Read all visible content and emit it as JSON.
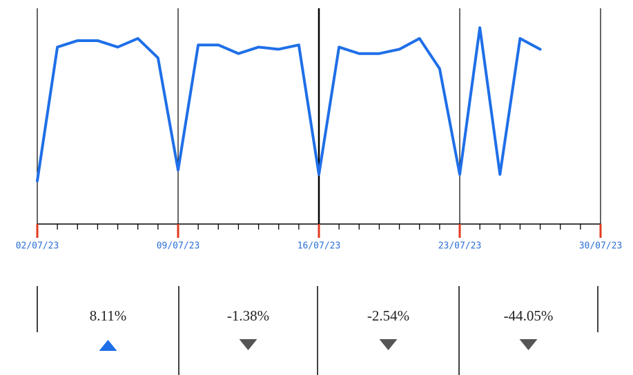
{
  "chart_data": {
    "type": "line",
    "x": [
      "02/07/23",
      "03/07/23",
      "04/07/23",
      "05/07/23",
      "06/07/23",
      "07/07/23",
      "08/07/23",
      "09/07/23",
      "10/07/23",
      "11/07/23",
      "12/07/23",
      "13/07/23",
      "14/07/23",
      "15/07/23",
      "16/07/23",
      "17/07/23",
      "18/07/23",
      "19/07/23",
      "20/07/23",
      "21/07/23",
      "22/07/23",
      "23/07/23",
      "24/07/23",
      "25/07/23",
      "26/07/23",
      "27/07/23"
    ],
    "values": [
      20,
      82,
      85,
      85,
      82,
      86,
      77,
      25,
      83,
      83,
      79,
      82,
      81,
      83,
      23,
      82,
      79,
      79,
      81,
      86,
      72,
      23,
      91,
      23,
      86,
      81
    ],
    "color": "#1f6fe8",
    "ylim": [
      0,
      100
    ],
    "xlim": [
      "02/07/23",
      "30/07/23"
    ],
    "xticks": [
      "02/07/23",
      "09/07/23",
      "16/07/23",
      "23/07/23",
      "30/07/23"
    ]
  },
  "weekly_change": [
    {
      "label": "8.11%",
      "trend": "up"
    },
    {
      "label": "-1.38%",
      "trend": "down"
    },
    {
      "label": "-2.54%",
      "trend": "down"
    },
    {
      "label": "-44.05%",
      "trend": "down"
    }
  ],
  "trend_colors": {
    "up": "#1f6fe8",
    "down": "#555555"
  }
}
